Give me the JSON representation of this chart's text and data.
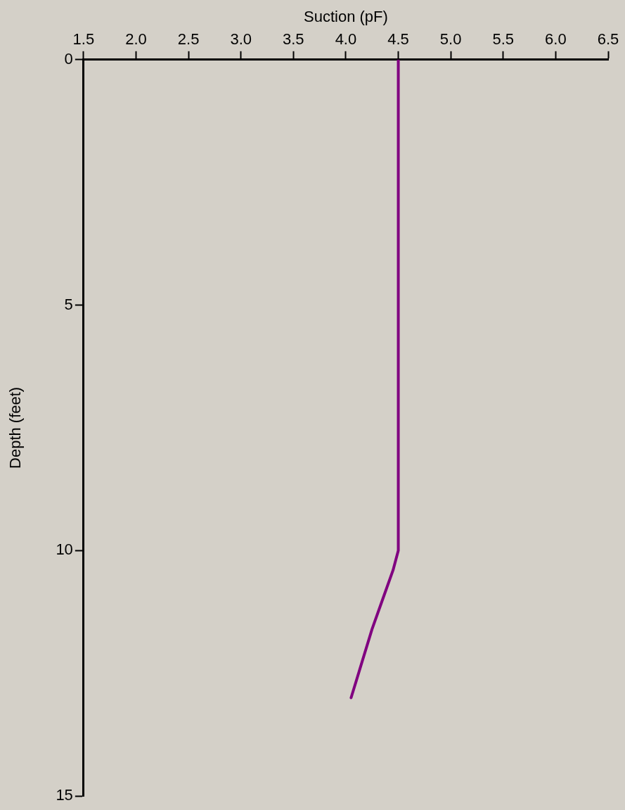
{
  "chart_data": {
    "type": "line",
    "xlabel": "Suction (pF)",
    "ylabel": "Depth (feet)",
    "series": [
      {
        "color": "#800080",
        "x": [
          4.5,
          4.5,
          4.45,
          4.35,
          4.25,
          4.15,
          4.05
        ],
        "values": [
          0,
          10,
          10.4,
          11,
          11.6,
          12.3,
          13
        ]
      }
    ],
    "xlim": [
      1.5,
      6.5
    ],
    "xticks": [
      {
        "value": 1.5,
        "label": "1.5"
      },
      {
        "value": 2,
        "label": "2.0"
      },
      {
        "value": 2.5,
        "label": "2.5"
      },
      {
        "value": 3,
        "label": "3.0"
      },
      {
        "value": 3.5,
        "label": "3.5"
      },
      {
        "value": 4,
        "label": "4.0"
      },
      {
        "value": 4.5,
        "label": "4.5"
      },
      {
        "value": 5,
        "label": "5.0"
      },
      {
        "value": 5.5,
        "label": "5.5"
      },
      {
        "value": 6,
        "label": "6.0"
      },
      {
        "value": 6.5,
        "label": "6.5"
      }
    ],
    "ylim": [
      15,
      0
    ],
    "yticks": [
      0,
      5,
      10,
      15
    ],
    "grid": false,
    "legend": false,
    "marker": "none",
    "line_style": "solid"
  }
}
